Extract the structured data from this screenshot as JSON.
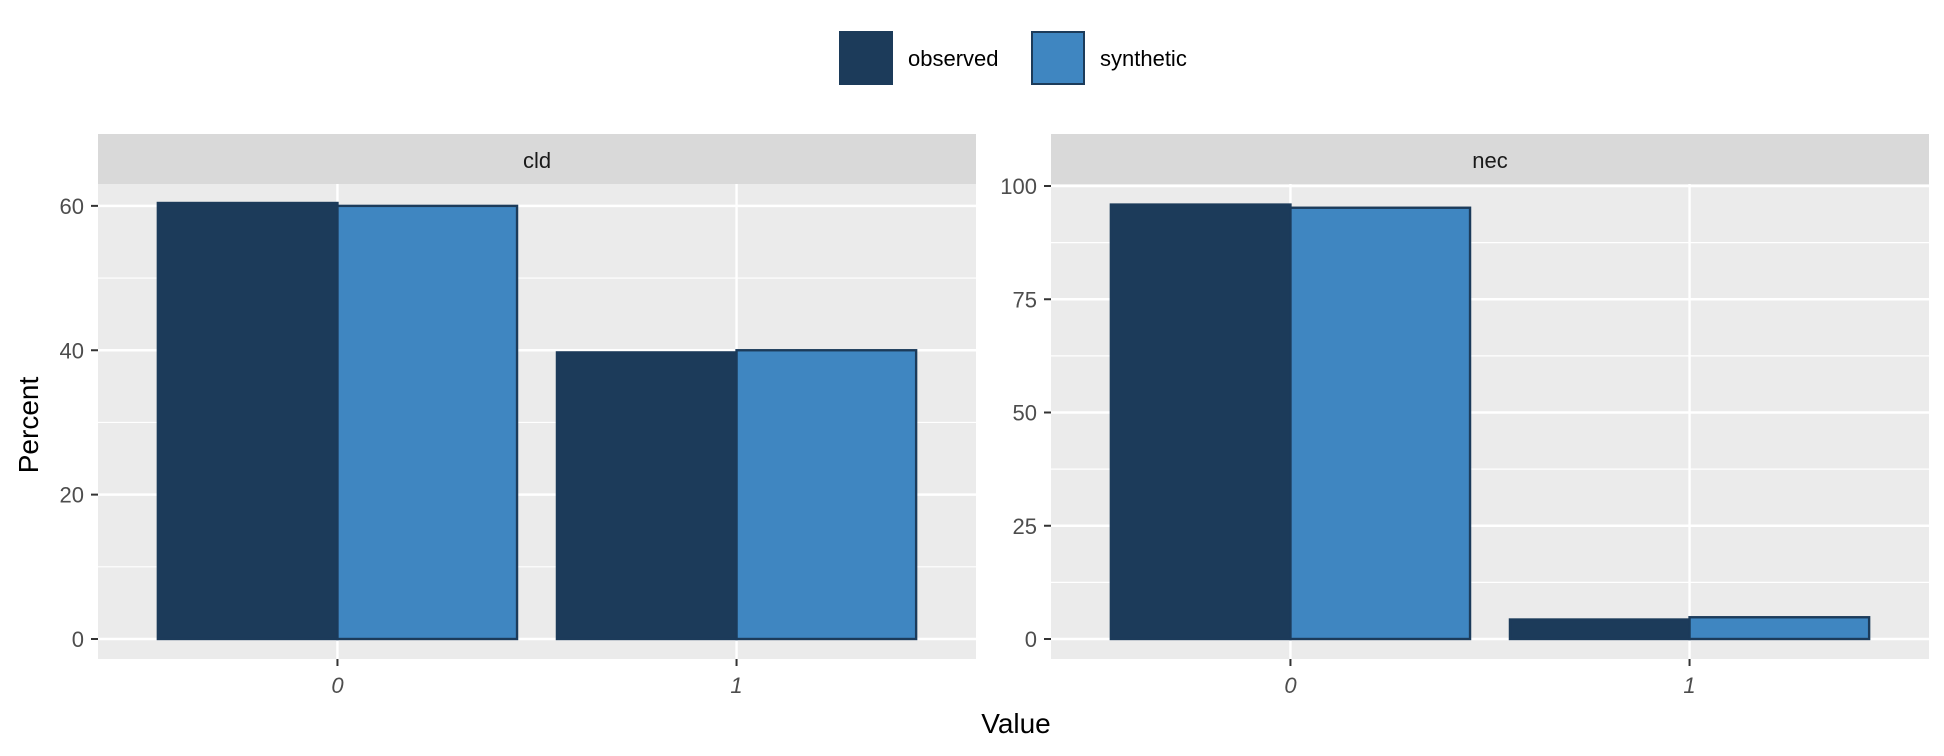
{
  "chart_data": {
    "type": "bar",
    "xlabel": "Value",
    "ylabel": "Percent",
    "legend": {
      "placement": "top",
      "entries": [
        {
          "name": "observed",
          "color": "#1c3b5a"
        },
        {
          "name": "synthetic",
          "color": "#3f86c1"
        }
      ]
    },
    "bar_outline_color": "#1c3b5a",
    "panel_background": "#ebebeb",
    "strip_background": "#d9d9d9",
    "grid": true,
    "panels": [
      {
        "title": "cld",
        "categories": [
          "0",
          "1"
        ],
        "ylim": [
          0,
          64
        ],
        "yticks": [
          0,
          20,
          40,
          60
        ],
        "series": [
          {
            "name": "observed",
            "values": [
              60.4,
              39.7
            ]
          },
          {
            "name": "synthetic",
            "values": [
              60.0,
              40.0
            ]
          }
        ]
      },
      {
        "title": "nec",
        "categories": [
          "0",
          "1"
        ],
        "ylim": [
          0,
          100
        ],
        "yticks": [
          0,
          25,
          50,
          75,
          100
        ],
        "series": [
          {
            "name": "observed",
            "values": [
              95.9,
              4.3
            ]
          },
          {
            "name": "synthetic",
            "values": [
              95.2,
              4.8
            ]
          }
        ]
      }
    ]
  }
}
